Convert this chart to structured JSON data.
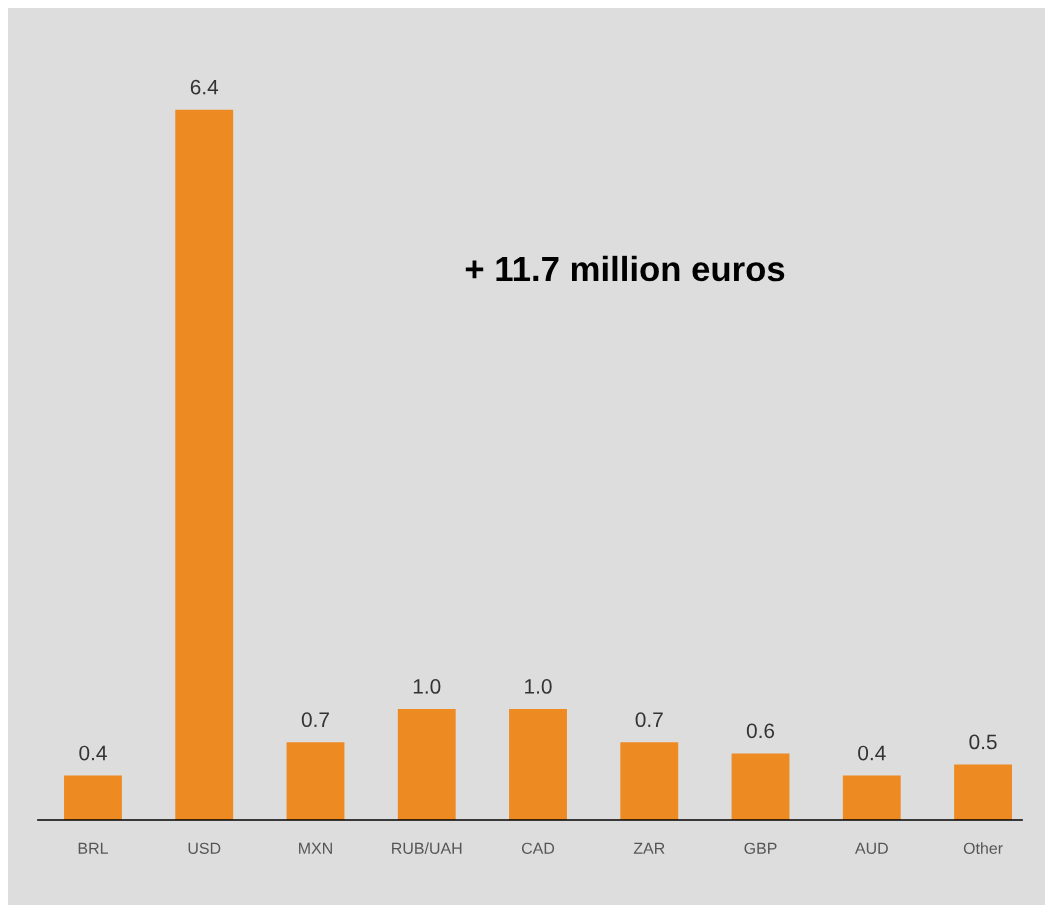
{
  "chart_data": {
    "type": "bar",
    "categories": [
      "BRL",
      "USD",
      "MXN",
      "RUB/UAH",
      "CAD",
      "ZAR",
      "GBP",
      "AUD",
      "Other"
    ],
    "values": [
      0.4,
      6.4,
      0.7,
      1.0,
      1.0,
      0.7,
      0.6,
      0.4,
      0.5
    ],
    "value_labels": [
      "0.4",
      "6.4",
      "0.7",
      "1.0",
      "1.0",
      "0.7",
      "0.6",
      "0.4",
      "0.5"
    ],
    "color": "#ee8a22",
    "annotations": [
      "+ 11.7 million euros"
    ]
  }
}
